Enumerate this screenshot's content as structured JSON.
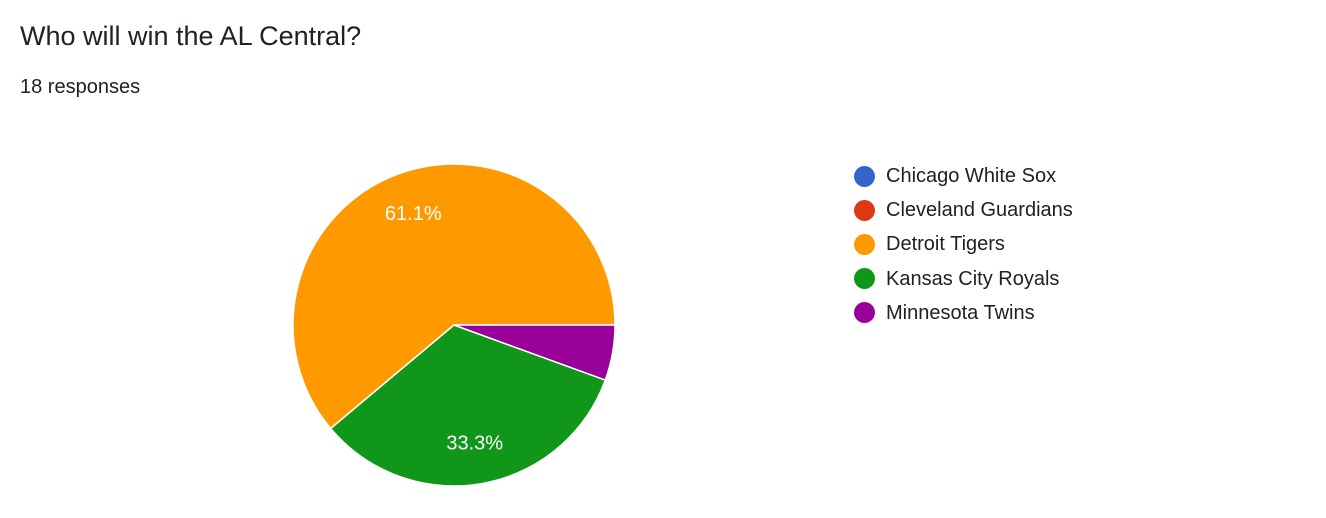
{
  "question": {
    "title": "Who will win the AL Central?",
    "responses": "18 responses"
  },
  "chart_data": {
    "type": "pie",
    "title": "Who will win the AL Central?",
    "total_responses": 18,
    "legend_position": "right",
    "slices": [
      {
        "label": "Chicago White Sox",
        "value": 0,
        "percent_label": "",
        "color": "#3366cc"
      },
      {
        "label": "Cleveland Guardians",
        "value": 0,
        "percent_label": "",
        "color": "#dc3912"
      },
      {
        "label": "Detroit Tigers",
        "value": 11,
        "percent_label": "61.1%",
        "color": "#ff9900"
      },
      {
        "label": "Kansas City Royals",
        "value": 6,
        "percent_label": "33.3%",
        "color": "#109618"
      },
      {
        "label": "Minnesota Twins",
        "value": 1,
        "percent_label": "",
        "color": "#990099"
      }
    ]
  }
}
